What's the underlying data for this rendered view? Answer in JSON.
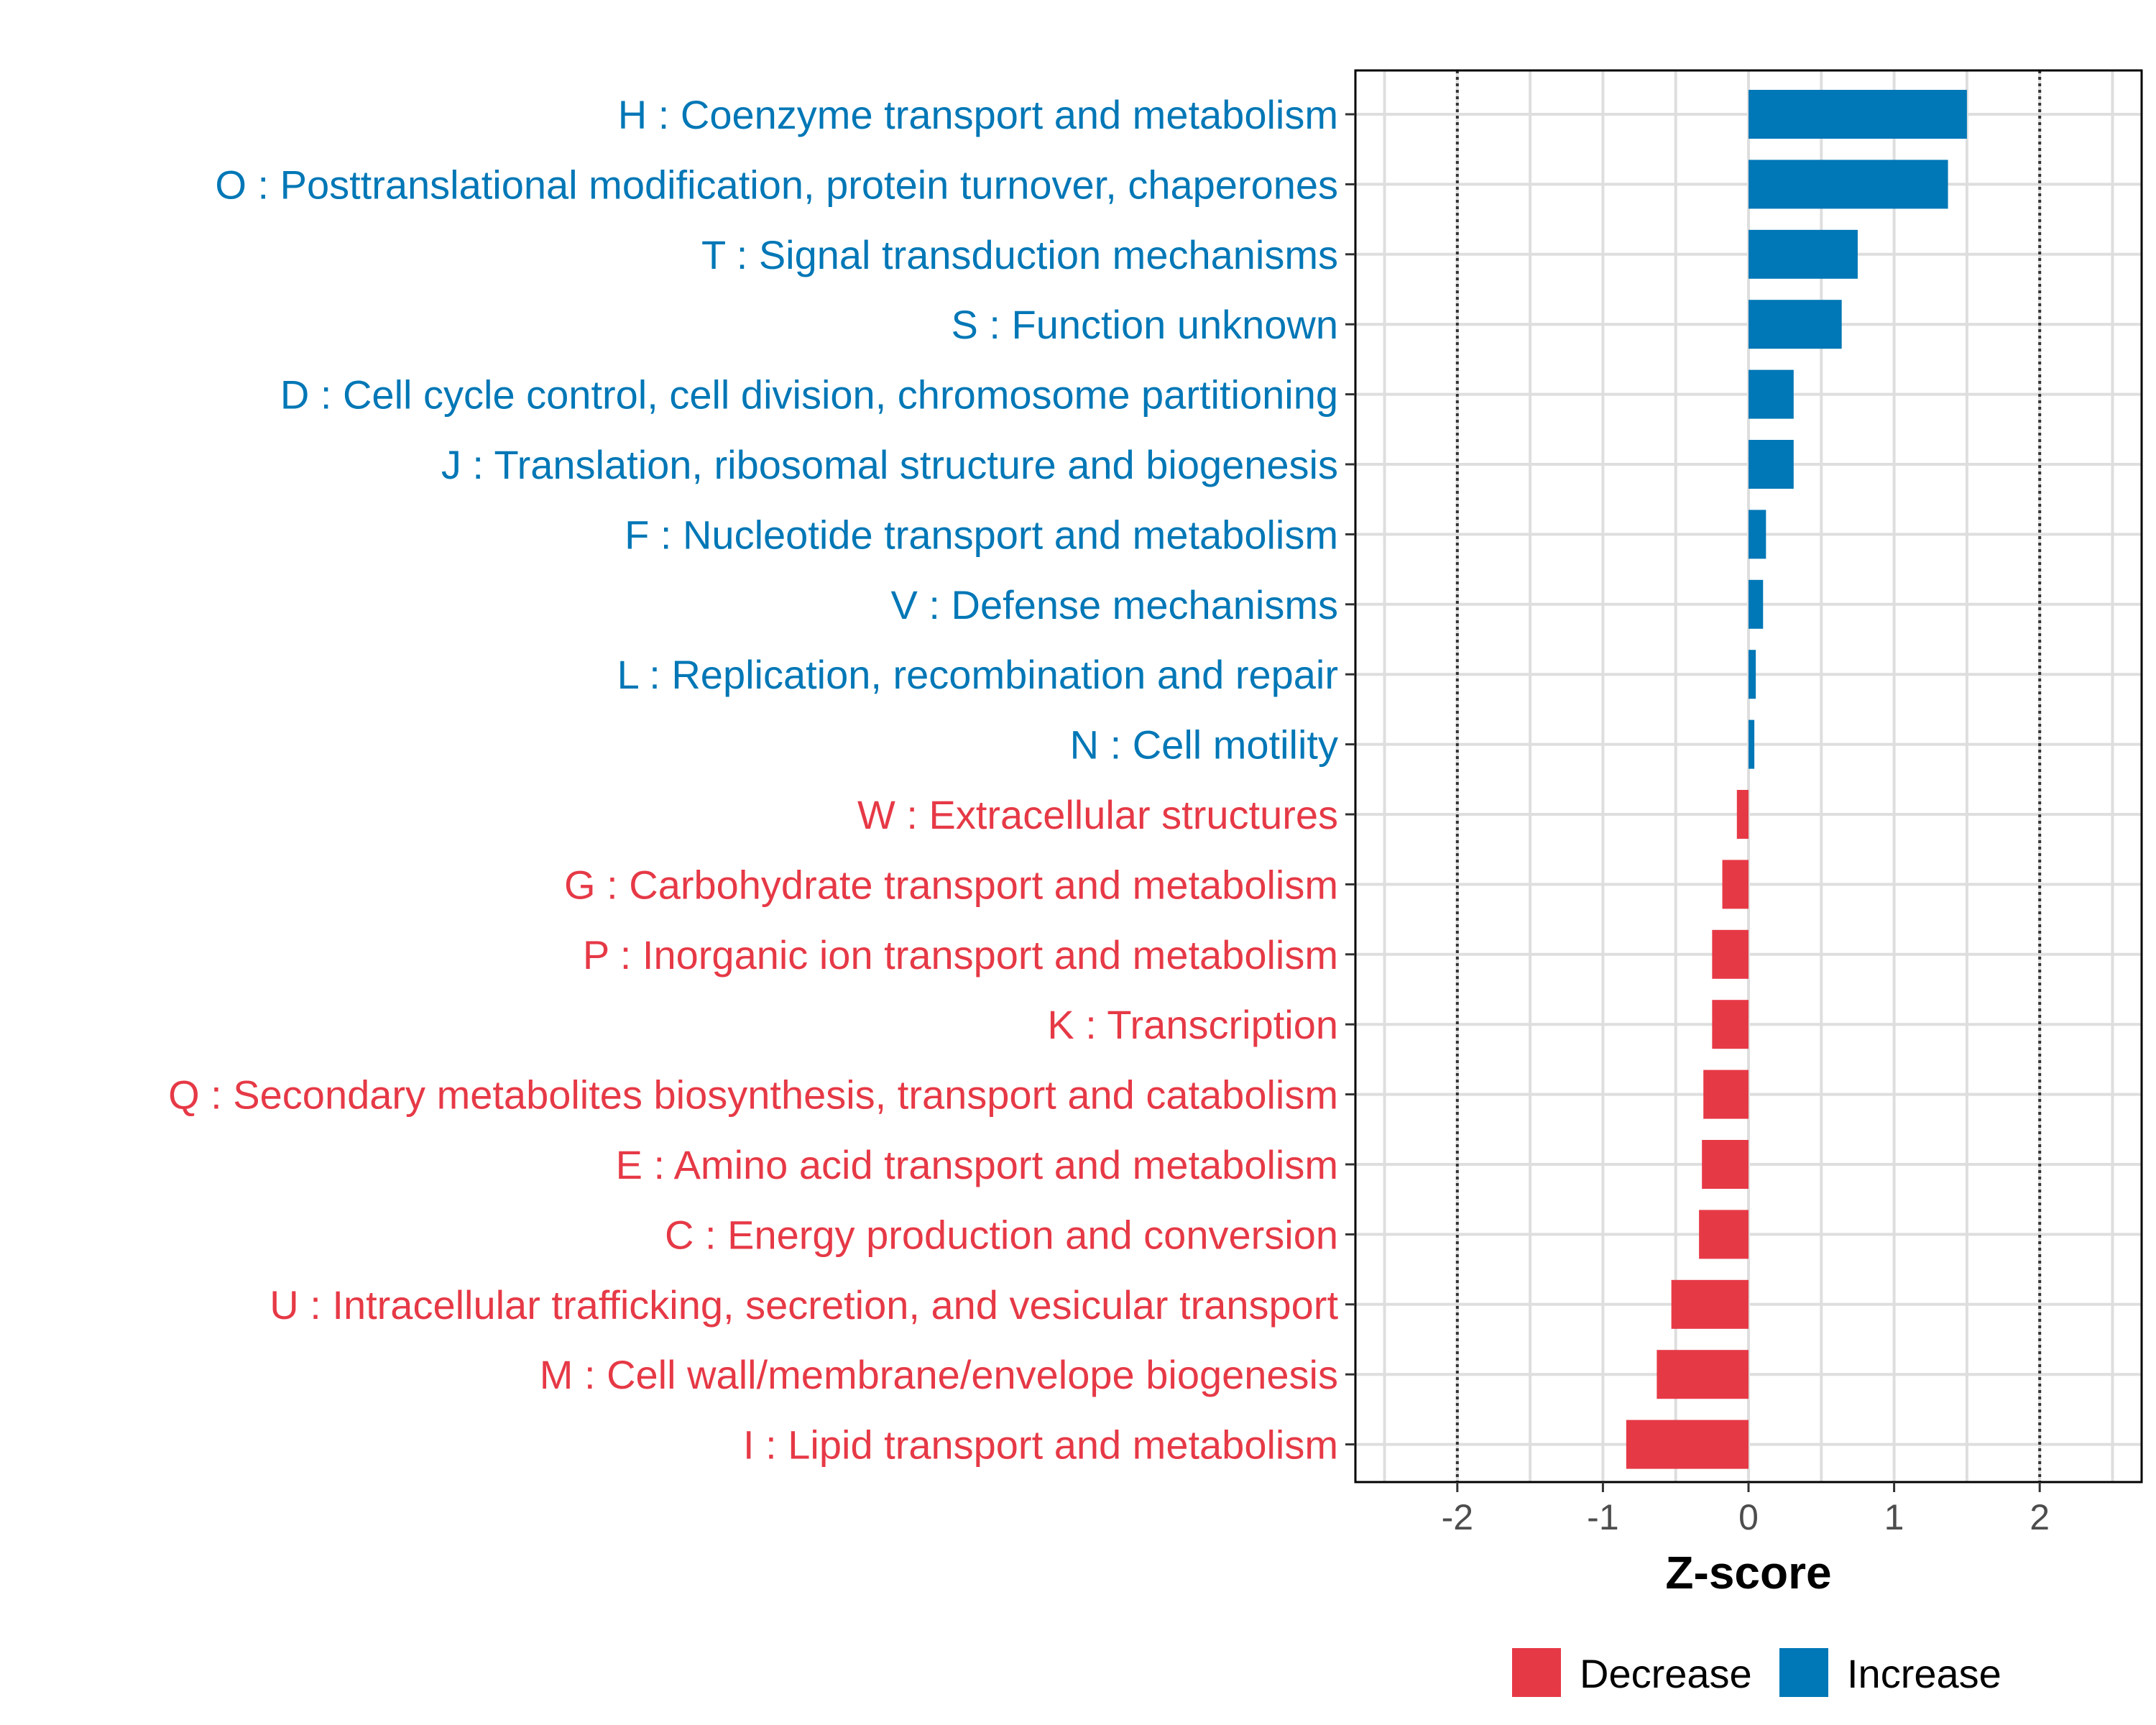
{
  "chart_data": {
    "type": "bar",
    "orientation": "horizontal",
    "title": "",
    "xlabel": "Z-score",
    "ylabel": "",
    "xlim": [
      -2.7,
      2.7
    ],
    "xticks": [
      -2,
      -1,
      0,
      1,
      2
    ],
    "xtick_labels": [
      "-2",
      "-1",
      "0",
      "1",
      "2"
    ],
    "reference_lines": [
      -2,
      2
    ],
    "grid": true,
    "legend_position": "bottom",
    "colors": {
      "Decrease": "#E63946",
      "Increase": "#0077B6"
    },
    "categories": [
      "H : Coenzyme transport and metabolism",
      "O : Posttranslational modification, protein turnover, chaperones",
      "T : Signal transduction mechanisms",
      "S : Function unknown",
      "D : Cell cycle control, cell division, chromosome partitioning",
      "J : Translation, ribosomal structure and biogenesis",
      "F : Nucleotide transport and metabolism",
      "V : Defense mechanisms",
      "L : Replication, recombination and repair",
      "N : Cell motility",
      "W : Extracellular structures",
      "G : Carbohydrate transport and metabolism",
      "P : Inorganic ion transport and metabolism",
      "K : Transcription",
      "Q : Secondary metabolites biosynthesis, transport and catabolism",
      "E : Amino acid transport and metabolism",
      "C : Energy production and conversion",
      "U : Intracellular trafficking, secretion, and vesicular transport",
      "M : Cell wall/membrane/envelope biogenesis",
      "I : Lipid transport and metabolism"
    ],
    "values": [
      1.5,
      1.37,
      0.75,
      0.64,
      0.31,
      0.31,
      0.12,
      0.1,
      0.05,
      0.04,
      -0.08,
      -0.18,
      -0.25,
      -0.25,
      -0.31,
      -0.32,
      -0.34,
      -0.53,
      -0.63,
      -0.84
    ],
    "groups": [
      "Increase",
      "Increase",
      "Increase",
      "Increase",
      "Increase",
      "Increase",
      "Increase",
      "Increase",
      "Increase",
      "Increase",
      "Decrease",
      "Decrease",
      "Decrease",
      "Decrease",
      "Decrease",
      "Decrease",
      "Decrease",
      "Decrease",
      "Decrease",
      "Decrease"
    ],
    "legend": [
      "Decrease",
      "Increase"
    ]
  }
}
